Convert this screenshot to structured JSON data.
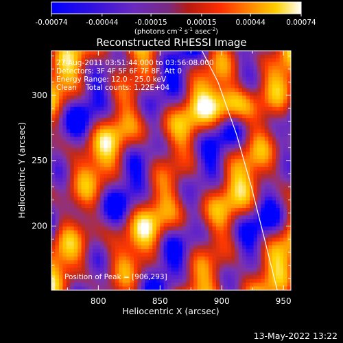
{
  "chart_data": {
    "type": "heatmap",
    "title": "Reconstructed RHESSI Image",
    "xlabel": "Heliocentric X (arcsec)",
    "ylabel": "Heliocentric Y (arcsec)",
    "xlim": [
      762,
      956
    ],
    "ylim": [
      151,
      334
    ],
    "x_ticks": [
      "800",
      "850",
      "900",
      "950"
    ],
    "x_tick_values": [
      800,
      850,
      900,
      950
    ],
    "y_ticks": [
      "200",
      "250",
      "300"
    ],
    "y_tick_values": [
      200,
      250,
      300
    ],
    "colorbar": {
      "ticks": [
        "-0.00074",
        "-0.00044",
        "-0.00015",
        "0.00015",
        "0.00044",
        "0.00074"
      ],
      "tick_values": [
        -0.00074,
        -0.00044,
        -0.00015,
        0.00015,
        0.00044,
        0.00074
      ],
      "range": [
        -0.00074,
        0.00074
      ],
      "unit_parts": [
        "(photons cm",
        "-2",
        " s",
        "-1",
        " asec",
        "-2",
        ")"
      ],
      "colors": [
        "#0000ff",
        "#5a1fd0",
        "#7a34b0",
        "#c02a1a",
        "#ff3a00",
        "#ff9800",
        "#ffd400",
        "#ffffff"
      ]
    },
    "annotations": [
      "27-Aug-2011 03:51:44.000 to 03:56:08.000",
      "Detectors: 3F 4F 5F 6F 7F 8F, Att 0",
      "Energy Range: 12.0 - 25.0 keV",
      "Clean    Total counts: 1.22E+04"
    ],
    "peak_label": "Position of Peak = [906,293]",
    "peak": [
      906,
      293
    ],
    "limb_curve": [
      [
        884,
        334
      ],
      [
        897,
        310
      ],
      [
        912,
        270
      ],
      [
        924,
        230
      ],
      [
        936,
        185
      ],
      [
        945,
        151
      ]
    ]
  },
  "footer": {
    "timestamp": "13-May-2022 13:22"
  }
}
